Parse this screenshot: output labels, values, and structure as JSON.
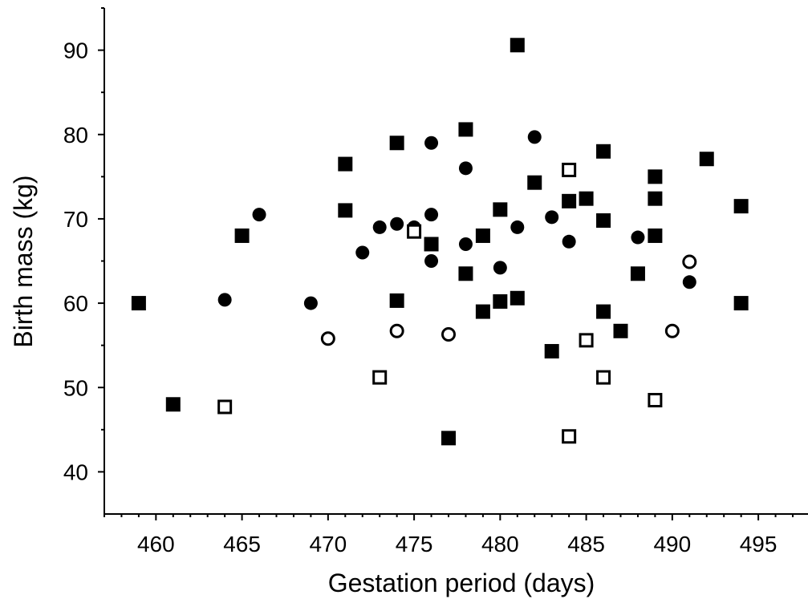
{
  "chart_data": {
    "type": "scatter",
    "title": "",
    "xlabel": "Gestation period (days)",
    "ylabel": "Birth mass (kg)",
    "xlim": [
      457,
      497
    ],
    "ylim": [
      35,
      95
    ],
    "x_ticks": [
      460,
      465,
      470,
      475,
      480,
      485,
      490,
      495
    ],
    "y_ticks": [
      40,
      50,
      60,
      70,
      80,
      90
    ],
    "x_tick_labels": [
      "460",
      "465",
      "470",
      "475",
      "480",
      "485",
      "490",
      "495"
    ],
    "y_tick_labels": [
      "40",
      "50",
      "60",
      "70",
      "80",
      "90"
    ],
    "grid": false,
    "legend": "none",
    "series": [
      {
        "marker": "filled-square",
        "color": "#000000",
        "points": [
          [
            459,
            60
          ],
          [
            461,
            48
          ],
          [
            465,
            68
          ],
          [
            471,
            76.5
          ],
          [
            471,
            71
          ],
          [
            474,
            79
          ],
          [
            474,
            60.3
          ],
          [
            476,
            67
          ],
          [
            477,
            44
          ],
          [
            478,
            80.6
          ],
          [
            478,
            63.5
          ],
          [
            479,
            68
          ],
          [
            479,
            59
          ],
          [
            480,
            71.1
          ],
          [
            480,
            60.2
          ],
          [
            481,
            90.6
          ],
          [
            481,
            60.6
          ],
          [
            482,
            74.3
          ],
          [
            483,
            54.3
          ],
          [
            484,
            72.1
          ],
          [
            485,
            72.4
          ],
          [
            486,
            78
          ],
          [
            486,
            69.8
          ],
          [
            486,
            59
          ],
          [
            487,
            56.7
          ],
          [
            488,
            63.5
          ],
          [
            489,
            75
          ],
          [
            489,
            72.4
          ],
          [
            489,
            68
          ],
          [
            492,
            77.1
          ],
          [
            494,
            71.5
          ],
          [
            494,
            60
          ]
        ]
      },
      {
        "marker": "filled-circle",
        "color": "#000000",
        "points": [
          [
            464,
            60.4
          ],
          [
            466,
            70.5
          ],
          [
            469,
            60
          ],
          [
            472,
            66
          ],
          [
            473,
            69
          ],
          [
            474,
            69.4
          ],
          [
            475,
            69
          ],
          [
            476,
            79
          ],
          [
            476,
            70.5
          ],
          [
            476,
            65
          ],
          [
            478,
            76
          ],
          [
            478,
            67
          ],
          [
            480,
            64.2
          ],
          [
            481,
            69
          ],
          [
            482,
            79.7
          ],
          [
            483,
            70.2
          ],
          [
            484,
            67.3
          ],
          [
            488,
            67.8
          ],
          [
            491,
            62.5
          ]
        ]
      },
      {
        "marker": "open-square",
        "color": "#000000",
        "points": [
          [
            464,
            47.7
          ],
          [
            473,
            51.2
          ],
          [
            475,
            68.5
          ],
          [
            484,
            75.8
          ],
          [
            484,
            44.2
          ],
          [
            485,
            55.6
          ],
          [
            486,
            51.2
          ],
          [
            489,
            48.5
          ]
        ]
      },
      {
        "marker": "open-circle",
        "color": "#000000",
        "points": [
          [
            470,
            55.8
          ],
          [
            474,
            56.7
          ],
          [
            477,
            56.3
          ],
          [
            490,
            56.7
          ],
          [
            491,
            64.9
          ]
        ]
      }
    ]
  }
}
